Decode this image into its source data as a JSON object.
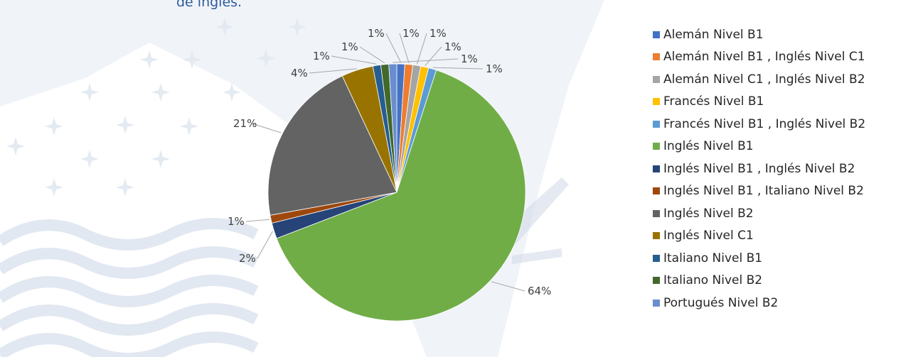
{
  "title_fragment": "de inglés.",
  "chart_data": {
    "type": "pie",
    "categories": [
      "Alemán Nivel B1",
      "Alemán Nivel B1 , Inglés Nivel C1",
      "Alemán Nivel C1 , Inglés Nivel B2",
      "Francés Nivel B1",
      "Francés Nivel B1 , Inglés Nivel B2",
      "Inglés Nivel B1",
      "Inglés Nivel B1 , Inglés Nivel B2",
      "Inglés Nivel B1 , Italiano Nivel B2",
      "Inglés Nivel B2",
      "Inglés Nivel C1",
      "Italiano Nivel B1",
      "Italiano Nivel B2",
      "Portugués Nivel B2"
    ],
    "values": [
      1,
      1,
      1,
      1,
      1,
      64,
      2,
      1,
      21,
      4,
      1,
      1,
      1
    ],
    "labels": [
      "1%",
      "1%",
      "1%",
      "1%",
      "1%",
      "64%",
      "2%",
      "1%",
      "21%",
      "4%",
      "1%",
      "1%",
      "1%"
    ],
    "colors": [
      "#4472c4",
      "#ed7d31",
      "#a5a5a5",
      "#ffc000",
      "#5b9bd5",
      "#70ad47",
      "#264478",
      "#9e480e",
      "#636363",
      "#997300",
      "#255e91",
      "#43682b",
      "#698ed0"
    ],
    "legend_position": "right"
  }
}
